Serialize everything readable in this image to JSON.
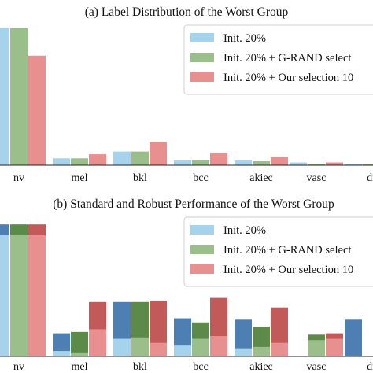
{
  "chart_data": [
    {
      "type": "bar",
      "title": "(a) Label Distribution of the Worst Group",
      "categories": [
        "nv",
        "mel",
        "bkl",
        "bcc",
        "akiec",
        "vasc",
        "df"
      ],
      "ylim": [
        0,
        100
      ],
      "grid": false,
      "legend_position": "top-right",
      "series": [
        {
          "name": "Init. 20%",
          "color": "#a6d3ec",
          "values": [
            100,
            5,
            10,
            4,
            4,
            2,
            1
          ]
        },
        {
          "name": "Init. 20% + G-RAND select",
          "color": "#9bbf8b",
          "values": [
            100,
            5,
            10,
            4,
            3,
            1,
            1
          ]
        },
        {
          "name": "Init. 20% + Our selection 10",
          "color": "#e89090",
          "values": [
            80,
            8,
            17,
            9,
            6,
            2,
            1
          ]
        }
      ]
    },
    {
      "type": "bar",
      "title": "(b) Standard and Robust Performance of the Worst Group",
      "categories": [
        "nv",
        "mel",
        "bkl",
        "bcc",
        "akiec",
        "vasc",
        "df"
      ],
      "ylim": [
        0,
        100
      ],
      "grid": false,
      "legend_position": "top-right",
      "stacked_overlay": true,
      "series": [
        {
          "name": "Init. 20%",
          "color": "#a6d3ec",
          "dark_color": "#4d7fb3",
          "robust": [
            89,
            4,
            13,
            8,
            6,
            0,
            0
          ],
          "standard": [
            97,
            17,
            40,
            28,
            27,
            0,
            27
          ]
        },
        {
          "name": "Init. 20% + G-RAND select",
          "color": "#9bbf8b",
          "dark_color": "#5c8a48",
          "robust": [
            89,
            3,
            14,
            13,
            7,
            12,
            0
          ],
          "standard": [
            97,
            18,
            40,
            25,
            22,
            16,
            0
          ]
        },
        {
          "name": "Init. 20% + Our selection 10",
          "color": "#e89090",
          "dark_color": "#c25a5a",
          "robust": [
            89,
            20,
            10,
            15,
            10,
            13,
            0
          ],
          "standard": [
            97,
            40,
            41,
            43,
            36,
            17,
            0
          ]
        }
      ]
    }
  ]
}
